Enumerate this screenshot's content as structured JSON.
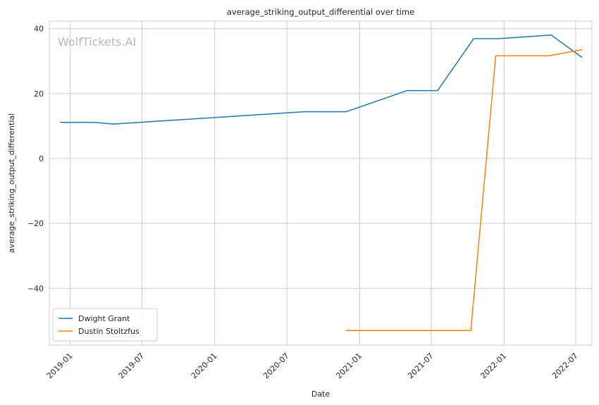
{
  "chart_data": {
    "type": "line",
    "title": "average_striking_output_differential over time",
    "xlabel": "Date",
    "ylabel": "average_striking_output_differential",
    "watermark": "WolfTickets.AI",
    "grid": true,
    "legend_position": "lower-left",
    "xlim": [
      "2018-11-09",
      "2022-08-11"
    ],
    "ylim": [
      -57.5,
      42.3
    ],
    "x_ticks": [
      {
        "date": "2019-01-01",
        "label": "2019-01"
      },
      {
        "date": "2019-07-01",
        "label": "2019-07"
      },
      {
        "date": "2020-01-01",
        "label": "2020-01"
      },
      {
        "date": "2020-07-01",
        "label": "2020-07"
      },
      {
        "date": "2021-01-01",
        "label": "2021-01"
      },
      {
        "date": "2021-07-01",
        "label": "2021-07"
      },
      {
        "date": "2022-01-01",
        "label": "2022-01"
      },
      {
        "date": "2022-07-01",
        "label": "2022-07"
      }
    ],
    "y_ticks": [
      {
        "value": 40,
        "label": "40"
      },
      {
        "value": 20,
        "label": "20"
      },
      {
        "value": 0,
        "label": "0"
      },
      {
        "value": -20,
        "label": "−20"
      },
      {
        "value": -40,
        "label": "−40"
      }
    ],
    "series": [
      {
        "name": "Dwight Grant",
        "color": "#1f77b4",
        "points": [
          {
            "x": "2018-12-08",
            "y": 11.1
          },
          {
            "x": "2019-03-02",
            "y": 11.1
          },
          {
            "x": "2019-04-20",
            "y": 10.6
          },
          {
            "x": "2020-08-15",
            "y": 14.4
          },
          {
            "x": "2020-11-28",
            "y": 14.4
          },
          {
            "x": "2021-05-01",
            "y": 20.9
          },
          {
            "x": "2021-07-17",
            "y": 20.9
          },
          {
            "x": "2021-10-16",
            "y": 36.9
          },
          {
            "x": "2021-12-18",
            "y": 36.9
          },
          {
            "x": "2022-04-30",
            "y": 38.0
          },
          {
            "x": "2022-07-16",
            "y": 31.2
          }
        ]
      },
      {
        "name": "Dustin Stoltzfus",
        "color": "#ff7f0e",
        "points": [
          {
            "x": "2020-11-28",
            "y": -53.0
          },
          {
            "x": "2021-10-09",
            "y": -53.0
          },
          {
            "x": "2021-12-11",
            "y": 31.6
          },
          {
            "x": "2022-04-23",
            "y": 31.6
          },
          {
            "x": "2022-07-16",
            "y": 33.5
          }
        ]
      }
    ]
  }
}
